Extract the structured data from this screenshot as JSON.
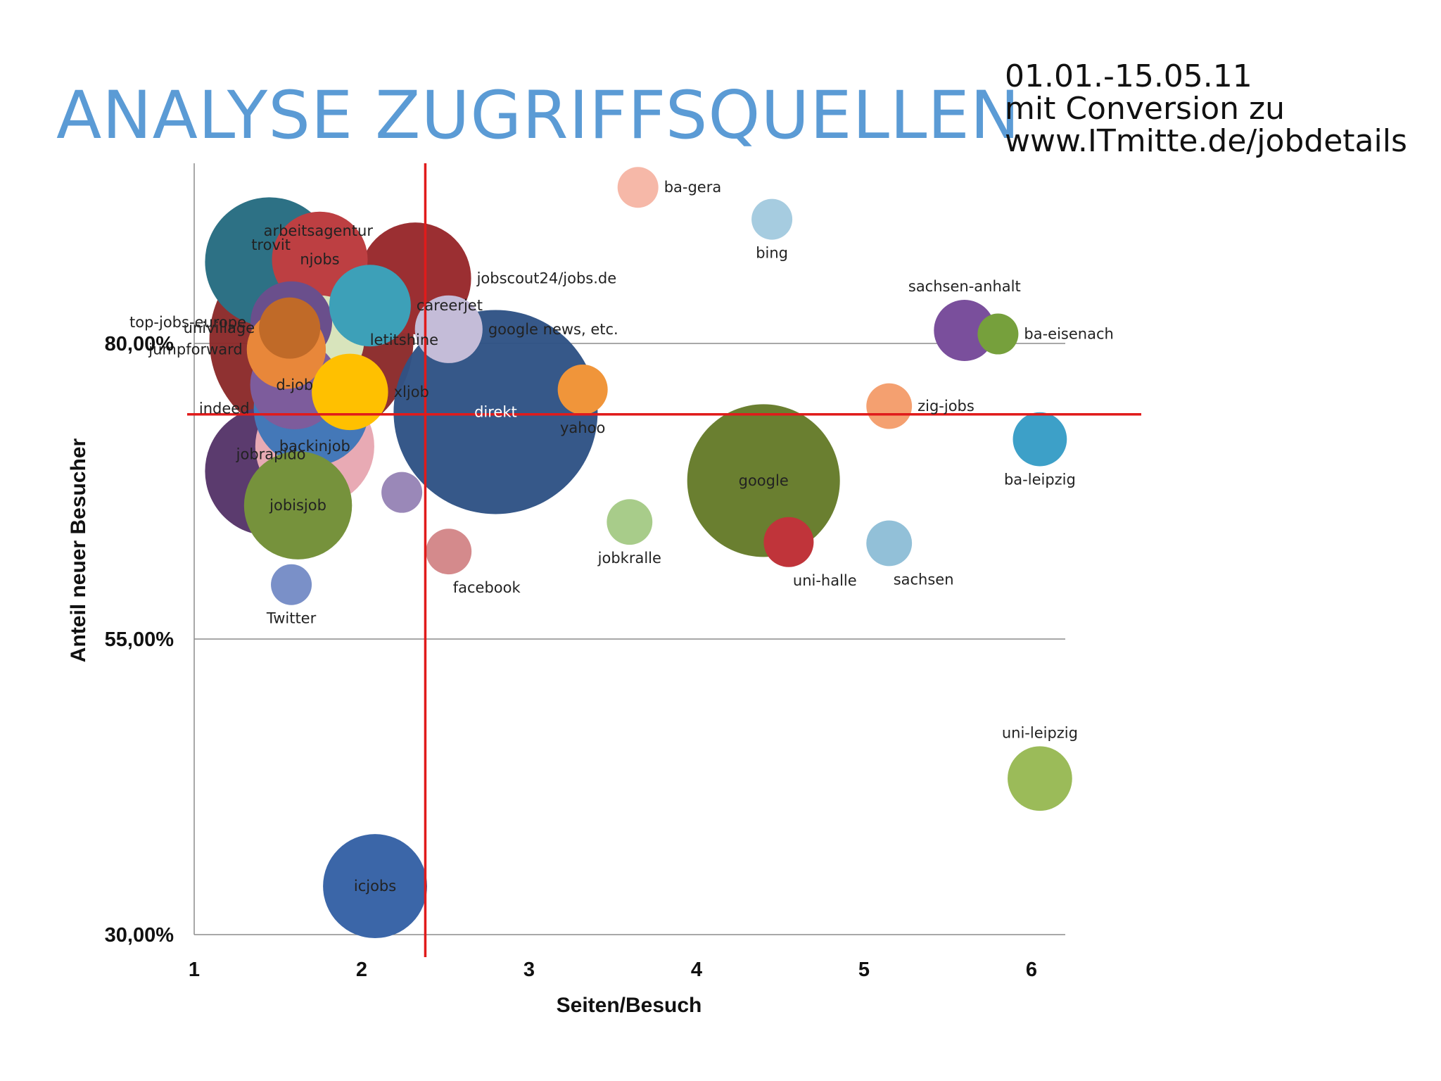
{
  "title": "ANALYSE ZUGRIFFSQUELLEN",
  "subtitle": {
    "line1": "01.01.-15.05.11",
    "line2": "mit Conversion zu",
    "line3": "www.ITmitte.de/jobdetails"
  },
  "chart_data": {
    "type": "scatter",
    "title": "ANALYSE ZUGRIFFSQUELLEN",
    "xlabel": "Seiten/Besuch",
    "ylabel": "Anteil neuer Besucher",
    "xlim": [
      1,
      6.2
    ],
    "ylim": [
      30,
      95
    ],
    "x_ticks": [
      {
        "value": 1,
        "label": "1"
      },
      {
        "value": 2,
        "label": "2"
      },
      {
        "value": 3,
        "label": "3"
      },
      {
        "value": 4,
        "label": "4"
      },
      {
        "value": 5,
        "label": "5"
      },
      {
        "value": 6,
        "label": "6"
      }
    ],
    "y_ticks": [
      {
        "value": 30,
        "label": "30,00%"
      },
      {
        "value": 55,
        "label": "55,00%"
      },
      {
        "value": 80,
        "label": "80,00%"
      }
    ],
    "grid": "horizontal",
    "reference_lines": {
      "x": 2.38,
      "y": 74
    },
    "reference_line_color": "#e01b1b",
    "bubble_size_note": "relative bubble size (largest = 100)",
    "points": [
      {
        "label": "arbeitsagentur",
        "x": 1.7,
        "y": 80.3,
        "size": 100,
        "color": "#8b2a2a",
        "label_pos": "top-right"
      },
      {
        "label": "direkt",
        "x": 2.8,
        "y": 74.2,
        "size": 100,
        "color": "#2f5385",
        "label_pos": "center"
      },
      {
        "label": "google",
        "x": 4.4,
        "y": 68.4,
        "size": 56,
        "color": "#6a7f30",
        "label_pos": "center"
      },
      {
        "label": "trovit",
        "x": 1.45,
        "y": 86.9,
        "size": 40,
        "color": "#2d7185",
        "label_pos": "left-up"
      },
      {
        "label": "jobrapido",
        "x": 1.45,
        "y": 69.2,
        "size": 40,
        "color": "#5b3b6e",
        "label_pos": "left-up"
      },
      {
        "label": "backinjob",
        "x": 1.72,
        "y": 71.3,
        "size": 34,
        "color": "#e8aab4",
        "label_pos": "center"
      },
      {
        "label": "jobscout24/jobs.de",
        "x": 2.32,
        "y": 85.5,
        "size": 30,
        "color": "#9b2f32",
        "label_pos": "right"
      },
      {
        "label": "jobisjob",
        "x": 1.62,
        "y": 66.3,
        "size": 28,
        "color": "#76923c",
        "label_pos": "center"
      },
      {
        "label": "indeed",
        "x": 1.7,
        "y": 74.5,
        "size": 32,
        "color": "#4478b8",
        "label_pos": "left"
      },
      {
        "label": "icjobs",
        "x": 2.08,
        "y": 34.1,
        "size": 26,
        "color": "#3b66a8",
        "label_pos": "center"
      },
      {
        "label": "njobs",
        "x": 1.75,
        "y": 87.1,
        "size": 22,
        "color": "#bd3f42",
        "label_pos": "center"
      },
      {
        "label": "letitshine",
        "x": 1.75,
        "y": 80.3,
        "size": 19,
        "color": "#d8e4bc",
        "label_pos": "right"
      },
      {
        "label": "d-job",
        "x": 1.6,
        "y": 76.5,
        "size": 19,
        "color": "#7d5c9c",
        "label_pos": "center"
      },
      {
        "label": "top-jobs-europe",
        "x": 1.58,
        "y": 81.8,
        "size": 16,
        "color": "#6a4f8c",
        "label_pos": "left"
      },
      {
        "label": "careerjet",
        "x": 2.05,
        "y": 83.2,
        "size": 16,
        "color": "#3da0b8",
        "label_pos": "right"
      },
      {
        "label": "jumpforward",
        "x": 1.55,
        "y": 79.5,
        "size": 15,
        "color": "#e8873a",
        "label_pos": "left"
      },
      {
        "label": "xljob",
        "x": 1.93,
        "y": 75.9,
        "size": 14,
        "color": "#ffc000",
        "label_pos": "right"
      },
      {
        "label": "google news, etc.",
        "x": 2.52,
        "y": 81.2,
        "size": 11,
        "color": "#c4bcd8",
        "label_pos": "right"
      },
      {
        "label": "univillage",
        "x": 1.57,
        "y": 81.3,
        "size": 9,
        "color": "#c06a28",
        "label_pos": "left"
      },
      {
        "label": "sachsen-anhalt",
        "x": 5.6,
        "y": 81.1,
        "size": 9,
        "color": "#7a4f9c",
        "label_pos": "top"
      },
      {
        "label": "ba-leipzig",
        "x": 6.05,
        "y": 71.9,
        "size": 7,
        "color": "#3da0c8",
        "label_pos": "bottom"
      },
      {
        "label": "uni-leipzig",
        "x": 6.05,
        "y": 43.2,
        "size": 10,
        "color": "#9bbb59",
        "label_pos": "top"
      },
      {
        "label": "uni-halle",
        "x": 4.55,
        "y": 63.2,
        "size": 6,
        "color": "#c0343a",
        "label_pos": "bottom-right"
      },
      {
        "label": "yahoo",
        "x": 3.32,
        "y": 76.1,
        "size": 6,
        "color": "#f0953a",
        "label_pos": "bottom"
      },
      {
        "label": "facebook",
        "x": 2.52,
        "y": 62.4,
        "size": 5,
        "color": "#d48a8c",
        "label_pos": "bottom-right"
      },
      {
        "label": "jobkralle",
        "x": 3.6,
        "y": 64.9,
        "size": 5,
        "color": "#a8cc8a",
        "label_pos": "bottom"
      },
      {
        "label": "zig-jobs",
        "x": 5.15,
        "y": 74.7,
        "size": 5,
        "color": "#f4a070",
        "label_pos": "right"
      },
      {
        "label": "sachsen",
        "x": 5.15,
        "y": 63.1,
        "size": 5,
        "color": "#92c0d8",
        "label_pos": "bottom-right"
      },
      {
        "label": "bing",
        "x": 4.45,
        "y": 90.5,
        "size": 4,
        "color": "#a6cce0",
        "label_pos": "bottom"
      },
      {
        "label": "ba-gera",
        "x": 3.65,
        "y": 93.2,
        "size": 4,
        "color": "#f6b8a8",
        "label_pos": "right"
      },
      {
        "label": "ba-eisenach",
        "x": 5.8,
        "y": 80.8,
        "size": 4,
        "color": "#76a03c",
        "label_pos": "right"
      },
      {
        "label": "Twitter",
        "x": 1.58,
        "y": 59.6,
        "size": 4,
        "color": "#7a90c8",
        "label_pos": "bottom"
      },
      {
        "label": "",
        "x": 2.24,
        "y": 67.4,
        "size": 4,
        "color": "#9a88b8",
        "label_pos": "none"
      }
    ]
  }
}
